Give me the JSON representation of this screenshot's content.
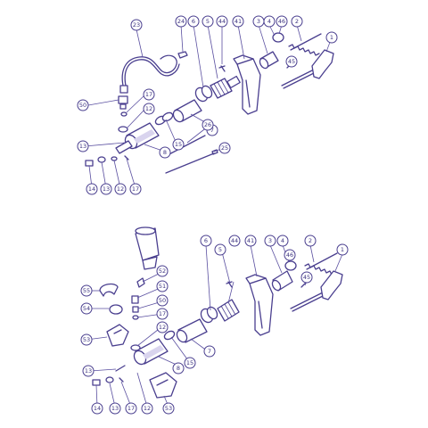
{
  "diagram": {
    "top_assembly": {
      "callouts": [
        {
          "id": "c-1",
          "text": "1"
        },
        {
          "id": "c-2",
          "text": "2"
        },
        {
          "id": "c-46",
          "text": "46"
        },
        {
          "id": "c-4",
          "text": "4"
        },
        {
          "id": "c-3",
          "text": "3"
        },
        {
          "id": "c-41",
          "text": "41"
        },
        {
          "id": "c-44",
          "text": "44"
        },
        {
          "id": "c-5",
          "text": "5"
        },
        {
          "id": "c-6",
          "text": "6"
        },
        {
          "id": "c-24",
          "text": "24"
        },
        {
          "id": "c-23",
          "text": "23"
        },
        {
          "id": "c-45",
          "text": "45"
        },
        {
          "id": "c-50",
          "text": "50"
        },
        {
          "id": "c-17a",
          "text": "17"
        },
        {
          "id": "c-12a",
          "text": "12"
        },
        {
          "id": "c-7",
          "text": "7"
        },
        {
          "id": "c-26",
          "text": "26"
        },
        {
          "id": "c-13a",
          "text": "13"
        },
        {
          "id": "c-15",
          "text": "15"
        },
        {
          "id": "c-8",
          "text": "8"
        },
        {
          "id": "c-25",
          "text": "25"
        },
        {
          "id": "c-14",
          "text": "14"
        },
        {
          "id": "c-13b",
          "text": "13"
        },
        {
          "id": "c-12b",
          "text": "12"
        },
        {
          "id": "c-17b",
          "text": "17"
        }
      ]
    },
    "bottom_assembly": {
      "callouts": [
        {
          "id": "d-6",
          "text": "6"
        },
        {
          "id": "d-44",
          "text": "44"
        },
        {
          "id": "d-41",
          "text": "41"
        },
        {
          "id": "d-3",
          "text": "3"
        },
        {
          "id": "d-4",
          "text": "4"
        },
        {
          "id": "d-2",
          "text": "2"
        },
        {
          "id": "d-1",
          "text": "1"
        },
        {
          "id": "d-46",
          "text": "46"
        },
        {
          "id": "d-45",
          "text": "45"
        },
        {
          "id": "d-5",
          "text": "5"
        },
        {
          "id": "d-52",
          "text": "52"
        },
        {
          "id": "d-55",
          "text": "55"
        },
        {
          "id": "d-51",
          "text": "51"
        },
        {
          "id": "d-54",
          "text": "54"
        },
        {
          "id": "d-50",
          "text": "50"
        },
        {
          "id": "d-17a",
          "text": "17"
        },
        {
          "id": "d-12a",
          "text": "12"
        },
        {
          "id": "d-53a",
          "text": "53"
        },
        {
          "id": "d-7",
          "text": "7"
        },
        {
          "id": "d-15",
          "text": "15"
        },
        {
          "id": "d-8",
          "text": "8"
        },
        {
          "id": "d-13a",
          "text": "13"
        },
        {
          "id": "d-14",
          "text": "14"
        },
        {
          "id": "d-13b",
          "text": "13"
        },
        {
          "id": "d-17b",
          "text": "17"
        },
        {
          "id": "d-12b",
          "text": "12"
        },
        {
          "id": "d-53b",
          "text": "53"
        }
      ]
    }
  }
}
